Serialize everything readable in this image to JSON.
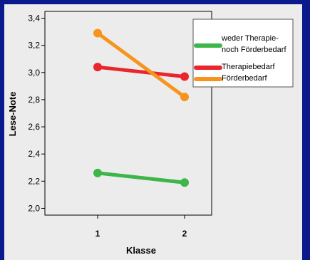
{
  "chart_data": {
    "type": "line",
    "xlabel": "Klasse",
    "ylabel": "Lese-Note",
    "categories": [
      "1",
      "2"
    ],
    "ylim": [
      1.95,
      3.45
    ],
    "yticks": [
      "2,0",
      "2,2",
      "2,4",
      "2,6",
      "2,8",
      "3,0",
      "3,2",
      "3,4"
    ],
    "ytick_values": [
      2.0,
      2.2,
      2.4,
      2.6,
      2.8,
      3.0,
      3.2,
      3.4
    ],
    "series": [
      {
        "name": "weder Therapie-\nnoch Förderbedarf",
        "name_lines": [
          "weder Therapie-",
          "noch Förderbedarf"
        ],
        "values": [
          2.26,
          2.19
        ],
        "color": "#3cb54a"
      },
      {
        "name": "Therapiebedarf",
        "name_lines": [
          "Therapiebedarf"
        ],
        "values": [
          3.04,
          2.97
        ],
        "color": "#e8262b"
      },
      {
        "name": "Förderbedarf",
        "name_lines": [
          "Förderbedarf"
        ],
        "values": [
          3.29,
          2.82
        ],
        "color": "#f7941d"
      }
    ],
    "legend_position": "top-right",
    "grid": false
  },
  "colors": {
    "background": "#0a1a8c",
    "panel": "#ececec",
    "plot_area": "#ececec"
  }
}
